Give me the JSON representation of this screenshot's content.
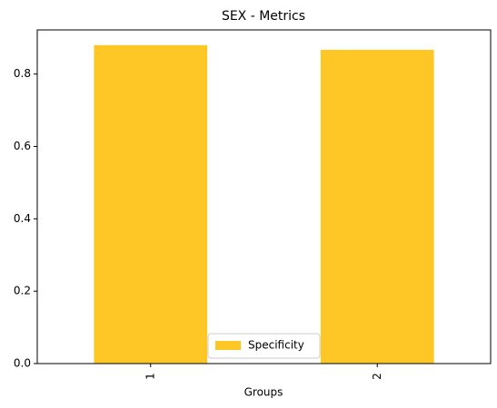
{
  "chart_data": {
    "type": "bar",
    "title": "SEX - Metrics",
    "x_label": "Groups",
    "categories": [
      "1",
      "2"
    ],
    "series": [
      {
        "name": "Specificity",
        "color": "#fec726",
        "values": [
          0.88,
          0.867
        ]
      }
    ],
    "ylim": [
      0,
      0.922
    ],
    "yticks": [
      {
        "value": 0,
        "label": "0.0"
      },
      0.2,
      0.4,
      0.6,
      0.8
    ],
    "legend": "lower center"
  }
}
